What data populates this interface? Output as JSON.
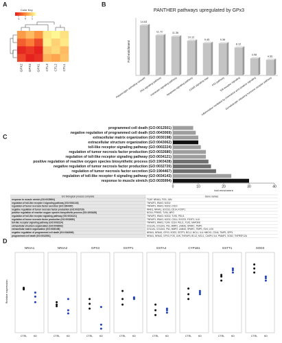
{
  "chart_data": [
    {
      "type": "heatmap",
      "label": "A",
      "title": "Color Key",
      "columns": [
        "GPX2",
        "GPX3",
        "GPX1",
        "CTL3",
        "CTL2",
        "CTL1"
      ],
      "matrix": [
        [
          0.2,
          0.6,
          0.1,
          1.2,
          1.4,
          1.1
        ],
        [
          -0.6,
          -0.2,
          -0.9,
          1.3,
          0.9,
          1.2
        ],
        [
          -1.3,
          -1.1,
          -1.4,
          0.8,
          1.0,
          0.6
        ],
        [
          -0.9,
          -1.4,
          -1.2,
          0.5,
          0.3,
          0.7
        ]
      ],
      "zlim": [
        -1.5,
        1.5
      ],
      "zticks": [
        -1,
        0,
        1
      ],
      "colors": [
        "#e31a1c",
        "#fd8d3c",
        "#ffff99"
      ]
    },
    {
      "type": "bar",
      "label": "B",
      "title": "PANTHER pathways upregulated by GPx3",
      "ylabel": "Fold enrichment",
      "categories": [
        "Plasminogen activating cascade",
        "FAS signaling pathway",
        "Interleukin signaling pathway",
        "Apoptosis signaling pathway",
        "CCKR signaling map",
        "P53 pathway",
        "Toll receptor signaling",
        "Inflammation mediated by chemokine and cytokine signaling",
        "Gonadotropin releasing hormone receptor pathway"
      ],
      "values": [
        14.63,
        11.72,
        11.36,
        10.12,
        9.45,
        9.36,
        8.12,
        4.98,
        4.55
      ],
      "ylim": [
        0,
        16
      ],
      "color": "#c4c4c4"
    },
    {
      "type": "hbar",
      "label": "C",
      "xlabel": "fold enrichment",
      "categories": [
        "programmed cell death (GO:0012501)",
        "negative regulation of programmed cell death (GO:0043069)",
        "extracellular matrix organization (GO:0030198)",
        "extracellular structure organization (GO:0043062)",
        "toll-like receptor signaling pathway (GO:0002224)",
        "regulation of tumor necrosis factor production (GO:0032680)",
        "regulation of toll-like receptor signaling pathway (GO:0034121)",
        "positive regulation of reactive oxygen species biosynthetic process (GO:1903428)",
        "negative regulation of tumor necrosis factor production (GO:0032720)",
        "regulation of tumor necrosis factor secretion (GO:1904467)",
        "regulation of toll-like receptor 4 signaling pathway (GO:0034143)",
        "response to muscle stretch (GO:0035994)"
      ],
      "values": [
        8,
        9,
        10,
        10,
        11,
        13,
        13,
        14,
        15,
        17,
        23,
        30
      ],
      "colors": [
        "#9e9e9e",
        "#9e9e9e",
        "#9e9e9e",
        "#111111",
        "#9e9e9e",
        "#9e9e9e",
        "#9e9e9e",
        "#6e6e6e",
        "#6e6e6e",
        "#6e6e6e",
        "#9e9e9e",
        "#111111"
      ],
      "xlim": [
        0,
        40
      ],
      "xticks": [
        0,
        10,
        20,
        30,
        40
      ]
    },
    {
      "type": "table",
      "columns": [
        "GO biological process complete",
        "Gene names"
      ],
      "rows": [
        [
          "response to muscle stretch (GO:0035994)",
          "TCAP, NR4A1, FOS, JUN"
        ],
        [
          "regulation of toll-like receptor 4 signaling pathway (GO:0034143)",
          "TNFAIP3, IRAK3, NOD2"
        ],
        [
          "regulation of tumor necrosis factor secretion (GO:1904467)",
          "TNFAIP3, IRAK3, NOD2, CD14"
        ],
        [
          "negative regulation of tumor necrosis factor production (GO:0032720)",
          "IRAK3, NR4A1, SOCS3, CD14, FOXP1"
        ],
        [
          "positive regulation of reactive oxygen species biosynthetic process (GO:1903428)",
          "NOX4, PPARG, TLR4, MPO"
        ],
        [
          "regulation of toll-like receptor signaling pathway (GO:0034121)",
          "TNFAIP3, IRAK3, NOD2, TLR4, PELI1"
        ],
        [
          "regulation of tumor necrosis factor production (GO:0032680)",
          "TNFAIP3, IRAK3, NOD2, CD14, SOCS3, FOXP1, IL10"
        ],
        [
          "toll-like receptor signaling pathway (GO:0002224)",
          "TNFAIP3, IRAK3, TLR4, CD14, PELI1, TLR2, MAP3K8"
        ],
        [
          "extracellular structure organization (GO:0043062)",
          "COL1A1, COL3A1, FN1, MMP2, LAMA2, SPARC, TIMP1"
        ],
        [
          "extracellular matrix organization (GO:0030198)",
          "COL1A1, COL3A1, FN1, MMP2, LAMA2, SPARC, TIMP1, ELN, LOX"
        ],
        [
          "negative regulation of programmed cell death (GO:0043069)",
          "NR4A1, NR4A2, GPX3, SOD3, GSTP1, BCL2, MCL1, IL6, HMOX1, CD44, TIMP1, SPP1"
        ],
        [
          "programmed cell death (GO:0012501)",
          "NR4A1, NR4A2, GPX3, FOS, JUN, TNFAIP3, BCL2, MCL1, CASP4, IL6, PMAIP1, SOD2, TNFRSF12A"
        ]
      ]
    },
    {
      "type": "dots",
      "label": "D",
      "ylabel": "Relative expression",
      "ylim": [
        0,
        1
      ],
      "groups": [
        "CTRL",
        "KD"
      ],
      "colors": [
        "#111111",
        "#1f3fd0"
      ],
      "panels": [
        {
          "title": "NR4A1",
          "values": [
            [
              0.55,
              0.56,
              0.54
            ],
            [
              0.45,
              0.5,
              0.38
            ]
          ]
        },
        {
          "title": "NR4A2",
          "values": [
            [
              0.38,
              0.33,
              0.35
            ],
            [
              0.28,
              0.42,
              0.24
            ]
          ]
        },
        {
          "title": "GPX3",
          "values": [
            [
              0.42,
              0.36,
              0.3
            ],
            [
              0.1,
              0.05,
              0.32
            ]
          ]
        },
        {
          "title": "GSTP1",
          "values": [
            [
              0.52,
              0.42,
              0.35
            ],
            [
              0.42,
              0.43,
              0.44
            ]
          ]
        },
        {
          "title": "GSTA4",
          "values": [
            [
              0.35,
              0.28,
              0.22
            ],
            [
              0.3,
              0.28,
              0.25
            ]
          ]
        },
        {
          "title": "CYP1B1",
          "values": [
            [
              0.55,
              0.48,
              0.42
            ],
            [
              0.48,
              0.52,
              0.5
            ]
          ]
        },
        {
          "title": "GSTT1",
          "values": [
            [
              0.7,
              0.65,
              0.72
            ],
            [
              0.78,
              0.8,
              0.75
            ]
          ]
        },
        {
          "title": "SOD3",
          "values": [
            [
              0.85,
              0.8,
              0.75
            ],
            [
              0.68,
              0.65,
              0.7
            ]
          ]
        }
      ]
    }
  ]
}
